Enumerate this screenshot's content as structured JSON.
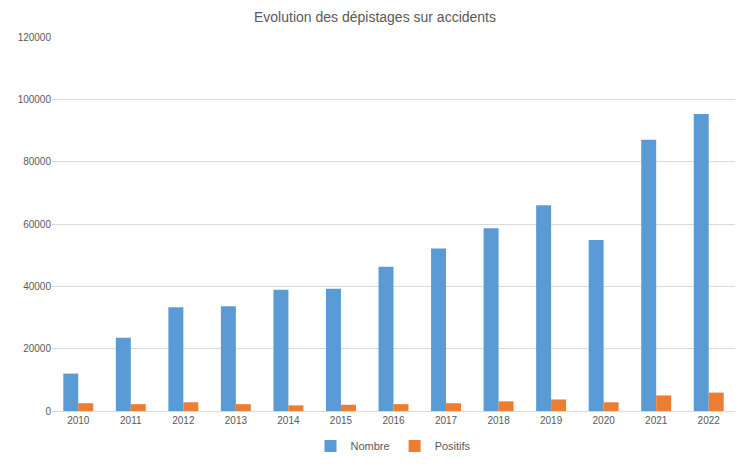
{
  "chart_data": {
    "type": "bar",
    "title": "Evolution des dépistages sur accidents",
    "categories": [
      "2010",
      "2011",
      "2012",
      "2013",
      "2014",
      "2015",
      "2016",
      "2017",
      "2018",
      "2019",
      "2020",
      "2021",
      "2022"
    ],
    "series": [
      {
        "name": "Nombre",
        "color": "#5b9bd5",
        "values": [
          12000,
          23500,
          33300,
          33600,
          38900,
          39200,
          46300,
          52100,
          58600,
          66000,
          54900,
          87000,
          95300
        ]
      },
      {
        "name": "Positifs",
        "color": "#ed7d31",
        "values": [
          2500,
          2200,
          2800,
          2200,
          1800,
          2000,
          2200,
          2500,
          3100,
          3700,
          2800,
          5000,
          5900
        ]
      }
    ],
    "ylim": [
      0,
      120000
    ],
    "yticks": [
      0,
      20000,
      40000,
      60000,
      80000,
      100000,
      120000
    ],
    "grid": true,
    "legend": "bottom"
  }
}
